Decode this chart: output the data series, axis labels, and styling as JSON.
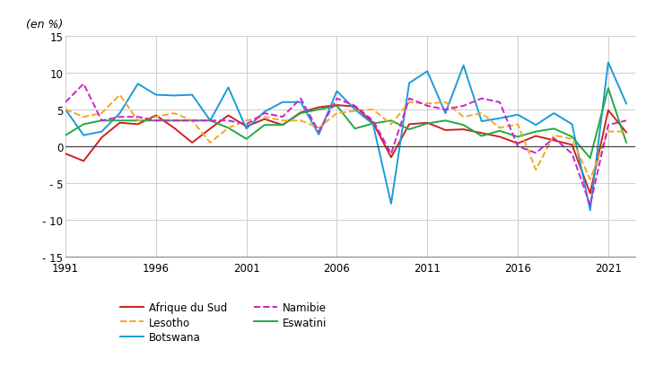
{
  "years": [
    1991,
    1992,
    1993,
    1994,
    1995,
    1996,
    1997,
    1998,
    1999,
    2000,
    2001,
    2002,
    2003,
    2004,
    2005,
    2006,
    2007,
    2008,
    2009,
    2010,
    2011,
    2012,
    2013,
    2014,
    2015,
    2016,
    2017,
    2018,
    2019,
    2020,
    2021,
    2022
  ],
  "afrique_du_sud": [
    -1.0,
    -2.0,
    1.2,
    3.2,
    3.0,
    4.2,
    2.5,
    0.5,
    2.4,
    4.2,
    2.7,
    3.7,
    2.9,
    4.6,
    5.3,
    5.6,
    5.4,
    3.2,
    -1.5,
    3.0,
    3.2,
    2.2,
    2.3,
    1.8,
    1.3,
    0.4,
    1.4,
    0.8,
    0.2,
    -6.4,
    4.9,
    1.9
  ],
  "botswana": [
    5.0,
    1.5,
    2.0,
    4.5,
    8.5,
    7.0,
    6.9,
    7.0,
    3.5,
    8.0,
    2.4,
    4.7,
    6.0,
    6.0,
    1.6,
    7.5,
    5.0,
    3.0,
    -7.8,
    8.6,
    10.2,
    4.5,
    11.0,
    3.4,
    3.8,
    4.3,
    2.9,
    4.5,
    3.0,
    -8.7,
    11.4,
    5.8
  ],
  "eswatini": [
    1.5,
    3.0,
    3.5,
    3.5,
    3.5,
    3.5,
    3.5,
    3.5,
    3.5,
    2.5,
    1.0,
    2.9,
    2.9,
    4.5,
    5.0,
    5.5,
    2.4,
    3.1,
    3.5,
    2.3,
    3.1,
    3.5,
    2.9,
    1.4,
    2.1,
    1.3,
    2.0,
    2.4,
    1.3,
    -1.6,
    7.9,
    0.5
  ],
  "lesotho": [
    5.0,
    4.0,
    4.5,
    7.0,
    3.5,
    4.0,
    4.5,
    3.5,
    0.5,
    2.5,
    3.5,
    4.0,
    3.5,
    3.5,
    2.5,
    4.5,
    4.8,
    5.0,
    3.0,
    6.0,
    5.8,
    6.0,
    4.0,
    4.5,
    2.5,
    3.0,
    -3.2,
    1.5,
    1.0,
    -4.5,
    2.0,
    2.0
  ],
  "namibie": [
    6.0,
    8.5,
    3.5,
    4.0,
    4.0,
    3.5,
    3.5,
    3.5,
    3.5,
    3.5,
    3.0,
    4.5,
    4.0,
    6.5,
    2.0,
    6.5,
    5.5,
    3.5,
    -1.0,
    6.5,
    5.5,
    5.0,
    5.5,
    6.5,
    6.0,
    0.0,
    -0.9,
    1.1,
    -1.0,
    -8.0,
    2.9,
    3.5
  ],
  "colors": {
    "afrique_du_sud": "#cc2222",
    "botswana": "#1a9cd8",
    "eswatini": "#22aa44",
    "lesotho": "#f5a623",
    "namibie": "#cc22cc"
  },
  "linestyles": {
    "afrique_du_sud": "-",
    "botswana": "-",
    "eswatini": "-",
    "lesotho": "--",
    "namibie": "--"
  },
  "labels": {
    "afrique_du_sud": "Afrique du Sud",
    "botswana": "Botswana",
    "eswatini": "Eswatini",
    "lesotho": "Lesotho",
    "namibie": "Namibie"
  },
  "ylabel": "(en %)",
  "ylim": [
    -15,
    15
  ],
  "xlim": [
    1991,
    2022.5
  ],
  "yticks": [
    -15,
    -10,
    -5,
    0,
    5,
    10,
    15
  ],
  "xticks": [
    1991,
    1996,
    2001,
    2006,
    2011,
    2016,
    2021
  ],
  "grid_color": "#cccccc",
  "background_color": "#ffffff",
  "linewidth": 1.4
}
